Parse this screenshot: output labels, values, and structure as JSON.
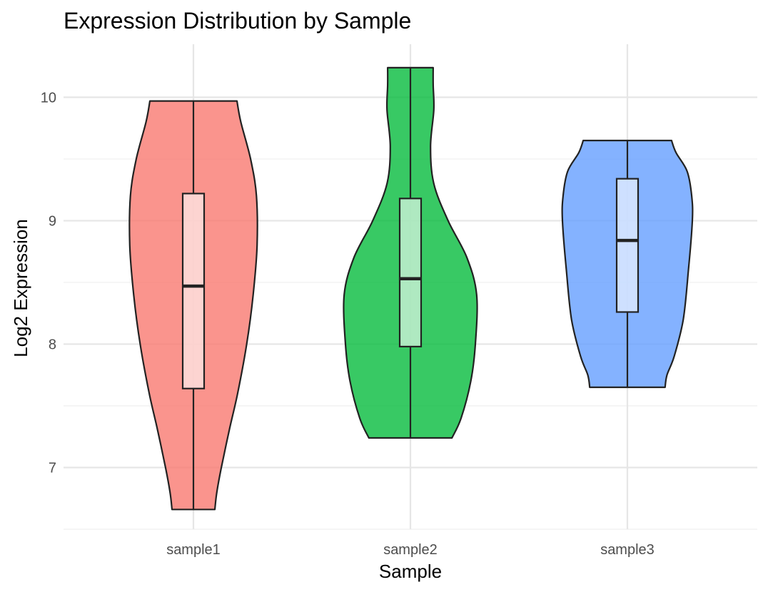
{
  "chart_data": {
    "type": "violin",
    "title": "Expression Distribution by Sample",
    "xlabel": "Sample",
    "ylabel": "Log2 Expression",
    "ylim": [
      6.5,
      10.43
    ],
    "yticks": [
      7,
      8,
      9,
      10
    ],
    "categories": [
      "sample1",
      "sample2",
      "sample3"
    ],
    "grid": true,
    "legend": "none",
    "colors": [
      "#F8766D",
      "#00BA38",
      "#619CFF"
    ],
    "boxplot": [
      {
        "name": "sample1",
        "min": 6.66,
        "q1": 7.64,
        "median": 8.47,
        "q3": 9.22,
        "max": 9.97
      },
      {
        "name": "sample2",
        "min": 7.24,
        "q1": 7.98,
        "median": 8.53,
        "q3": 9.18,
        "max": 10.24
      },
      {
        "name": "sample3",
        "min": 7.65,
        "q1": 8.26,
        "median": 8.84,
        "q3": 9.34,
        "max": 9.65
      }
    ],
    "density_profiles": [
      [
        [
          6.66,
          0.33
        ],
        [
          6.8,
          0.36
        ],
        [
          7.0,
          0.43
        ],
        [
          7.3,
          0.55
        ],
        [
          7.6,
          0.68
        ],
        [
          8.0,
          0.82
        ],
        [
          8.4,
          0.92
        ],
        [
          8.8,
          0.98
        ],
        [
          9.2,
          0.97
        ],
        [
          9.5,
          0.88
        ],
        [
          9.8,
          0.73
        ],
        [
          9.97,
          0.67
        ]
      ],
      [
        [
          7.24,
          0.64
        ],
        [
          7.4,
          0.78
        ],
        [
          7.7,
          0.93
        ],
        [
          8.0,
          1.0
        ],
        [
          8.4,
          1.02
        ],
        [
          8.7,
          0.87
        ],
        [
          9.0,
          0.58
        ],
        [
          9.3,
          0.36
        ],
        [
          9.6,
          0.31
        ],
        [
          9.9,
          0.36
        ],
        [
          10.1,
          0.35
        ],
        [
          10.24,
          0.35
        ]
      ],
      [
        [
          7.65,
          0.58
        ],
        [
          7.75,
          0.61
        ],
        [
          7.9,
          0.72
        ],
        [
          8.2,
          0.86
        ],
        [
          8.6,
          0.94
        ],
        [
          9.0,
          1.0
        ],
        [
          9.2,
          0.99
        ],
        [
          9.4,
          0.92
        ],
        [
          9.55,
          0.75
        ],
        [
          9.65,
          0.68
        ]
      ]
    ]
  }
}
